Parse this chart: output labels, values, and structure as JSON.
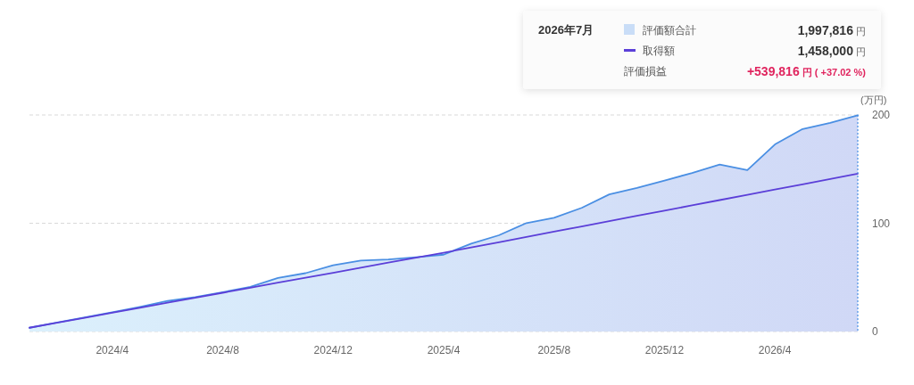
{
  "chart_data": {
    "type": "line",
    "ylabel": "(万円)",
    "legend_title": "2026年7月",
    "legend": "top right",
    "x": [
      "2024-01",
      "2024-02",
      "2024-03",
      "2024-04",
      "2024-05",
      "2024-06",
      "2024-07",
      "2024-08",
      "2024-09",
      "2024-10",
      "2024-11",
      "2024-12",
      "2025-01",
      "2025-02",
      "2025-03",
      "2025-04",
      "2025-05",
      "2025-06",
      "2025-07",
      "2025-08",
      "2025-09",
      "2025-10",
      "2025-11",
      "2025-12",
      "2026-01",
      "2026-02",
      "2026-03",
      "2026-04",
      "2026-05",
      "2026-06",
      "2026-07"
    ],
    "series": [
      {
        "name": "評価額合計",
        "type": "area",
        "color": "#4a8fe3",
        "values": [
          3.5,
          8.3,
          13.0,
          17.8,
          22.8,
          28.2,
          31.8,
          36.4,
          41.2,
          49.5,
          53.9,
          61.3,
          65.6,
          66.5,
          68.7,
          71.0,
          81.2,
          88.9,
          100.2,
          105.1,
          114.2,
          126.6,
          132.6,
          139.4,
          146.4,
          154.3,
          149.1,
          172.8,
          187.0,
          192.6,
          199.7816
        ]
      },
      {
        "name": "取得額",
        "type": "line",
        "color": "#5b3fd8",
        "values": [
          3.5,
          8.1,
          12.7,
          17.4,
          22.0,
          26.6,
          31.2,
          35.8,
          40.5,
          45.1,
          49.7,
          54.3,
          58.9,
          63.6,
          68.2,
          72.8,
          77.7,
          82.5,
          87.4,
          92.2,
          97.1,
          102.0,
          106.8,
          111.7,
          116.5,
          121.4,
          126.3,
          131.1,
          136.0,
          140.9,
          145.8
        ]
      }
    ],
    "xlim": [
      "2024-01",
      "2026-07"
    ],
    "xticks": [
      {
        "value": "2024-04",
        "label": "2024/4"
      },
      {
        "value": "2024-08",
        "label": "2024/8"
      },
      {
        "value": "2024-12",
        "label": "2024/12"
      },
      {
        "value": "2025-04",
        "label": "2025/4"
      },
      {
        "value": "2025-08",
        "label": "2025/8"
      },
      {
        "value": "2025-12",
        "label": "2025/12"
      },
      {
        "value": "2026-04",
        "label": "2026/4"
      }
    ],
    "ylim": [
      0,
      200
    ],
    "yticks": [
      0,
      100,
      200
    ],
    "grid": "y",
    "ref_lines": [
      {
        "axis": "x",
        "value": "2026-07",
        "color": "#4a8fe3",
        "line_style": "dotted"
      }
    ],
    "annotations": [
      "1,997,816 円",
      "1,458,000 円",
      "評価損益",
      "+539,816 円 ( +37.02 %)"
    ]
  }
}
